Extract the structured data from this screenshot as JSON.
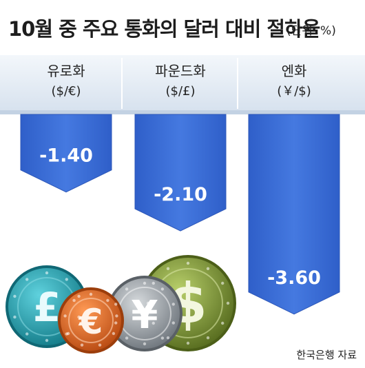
{
  "chart_data": {
    "type": "bar",
    "title": "10월 중 주요 통화의 달러 대비 절하율",
    "unit": "(단위: %)",
    "categories": [
      {
        "name": "유로화",
        "pair": "($/€)"
      },
      {
        "name": "파운드화",
        "pair": "($/£)"
      },
      {
        "name": "엔화",
        "pair": "(￥/$)"
      }
    ],
    "values": [
      -1.4,
      -2.1,
      -3.6
    ],
    "value_labels": [
      "-1.40",
      "-2.10",
      "-3.60"
    ],
    "source": "한국은행 자료",
    "coin_symbols": [
      "£",
      "€",
      "¥",
      "$"
    ],
    "colors": {
      "bar": "#3d6fd9",
      "bar_edge": "#2d57b8",
      "header_bg": "#e3ebf5",
      "header_shadow": "#b8c8dc",
      "coin_teal": "#23a3b2",
      "coin_orange": "#e36a26",
      "coin_silver": "#9aa0a6",
      "coin_green": "#7f9a3a"
    }
  }
}
